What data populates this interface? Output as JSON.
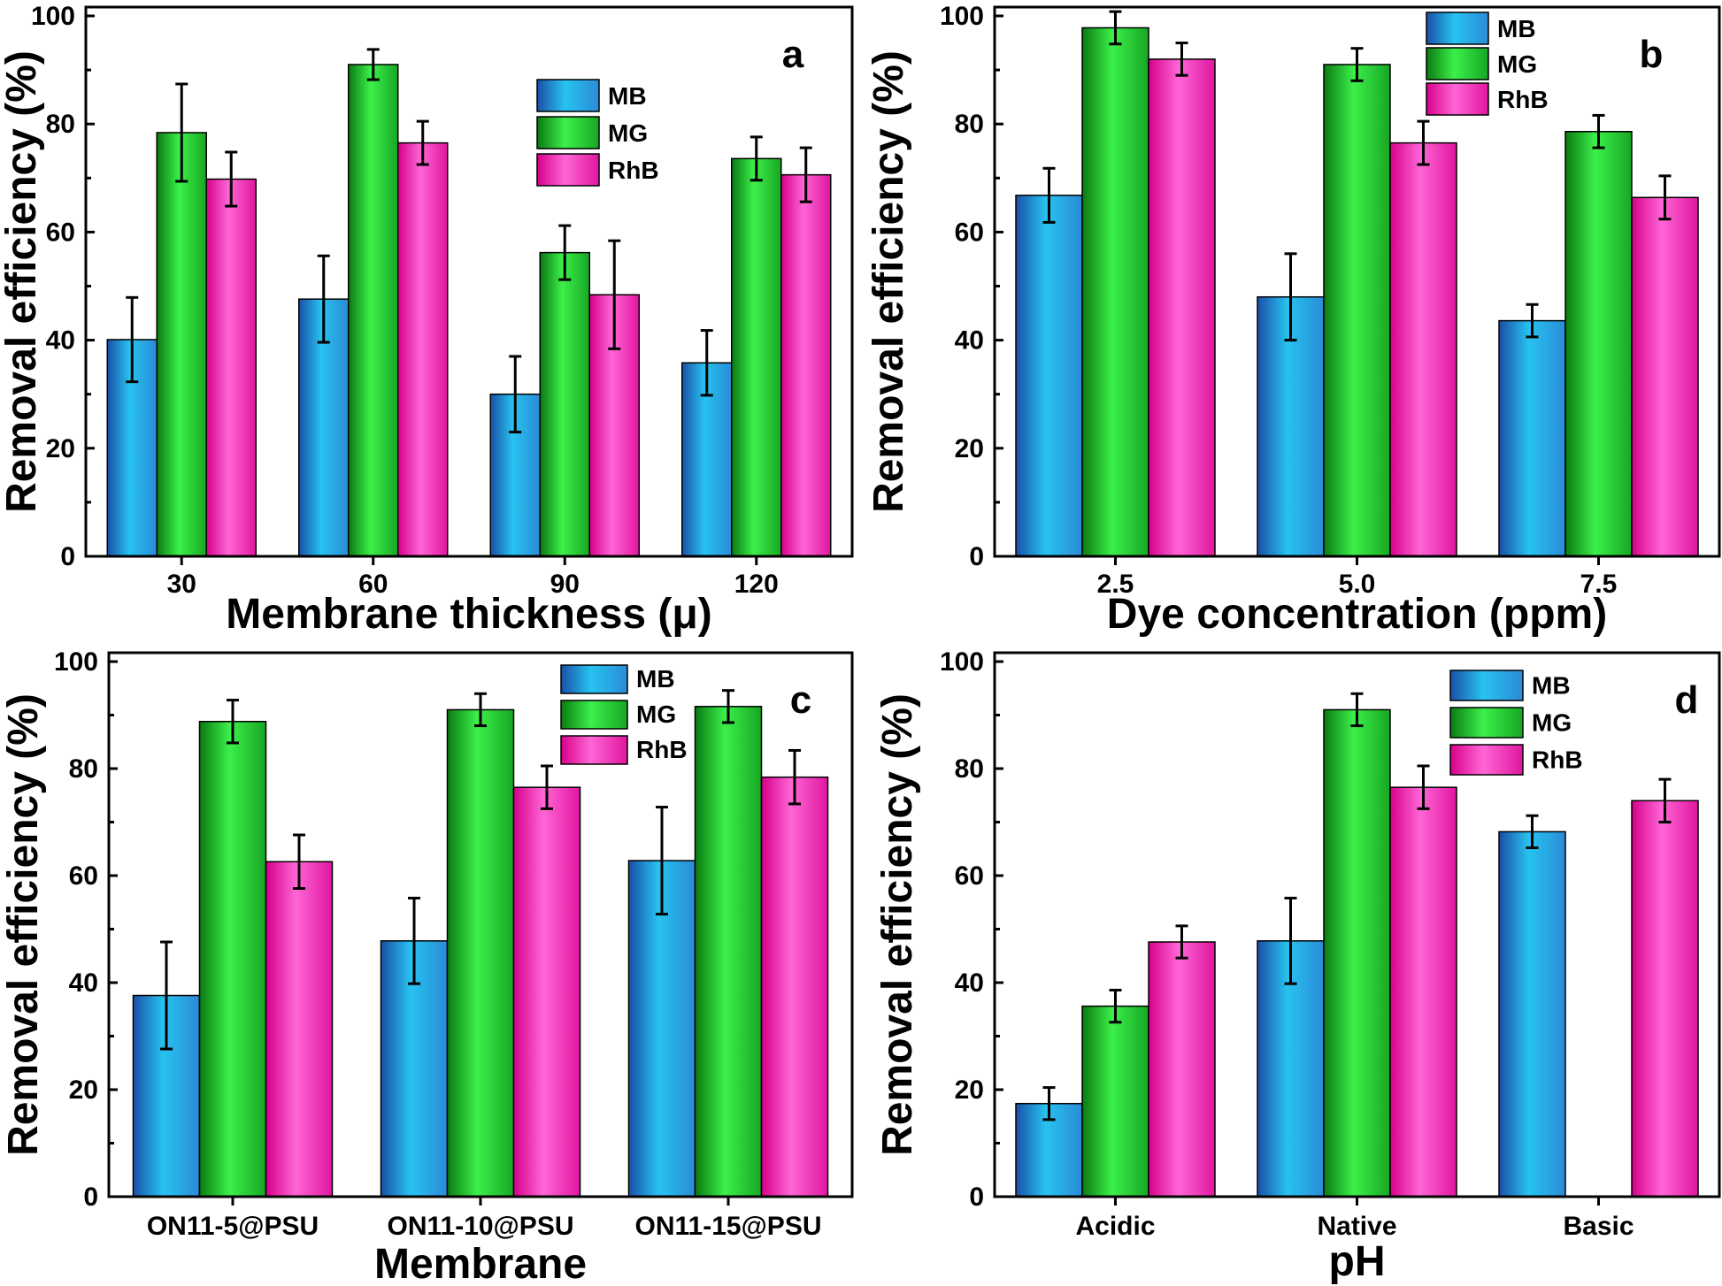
{
  "figure": {
    "legend_items": [
      {
        "name": "MB",
        "gradient": [
          "#1a4fa8",
          "#27c3f0",
          "#2a8bd6"
        ]
      },
      {
        "name": "MG",
        "gradient": [
          "#0a7a12",
          "#3cf04a",
          "#17a624"
        ]
      },
      {
        "name": "RhB",
        "gradient": [
          "#d6008a",
          "#ff66d6",
          "#e0169f"
        ]
      }
    ]
  },
  "chart_data": [
    {
      "type": "bar",
      "panel_label": "a",
      "xlabel": "Membrane thickness (μ)",
      "ylabel": "Removal efficiency (%)",
      "categories": [
        "30",
        "60",
        "90",
        "120"
      ],
      "ylim": [
        0,
        100
      ],
      "yticks": [
        0,
        20,
        40,
        60,
        80,
        100
      ],
      "legend_position": "top-right",
      "series": [
        {
          "name": "MB",
          "values": [
            40.1,
            47.6,
            30.0,
            35.8
          ],
          "errors": [
            7.8,
            8.0,
            7.0,
            6.0
          ]
        },
        {
          "name": "MG",
          "values": [
            78.4,
            91.0,
            56.2,
            73.6
          ],
          "errors": [
            9.0,
            2.8,
            5.0,
            4.0
          ]
        },
        {
          "name": "RhB",
          "values": [
            69.8,
            76.5,
            48.4,
            70.6
          ],
          "errors": [
            5.0,
            4.0,
            10.0,
            5.0
          ]
        }
      ]
    },
    {
      "type": "bar",
      "panel_label": "b",
      "xlabel": "Dye concentration (ppm)",
      "ylabel": "Removal efficiency (%)",
      "categories": [
        "2.5",
        "5.0",
        "7.5"
      ],
      "ylim": [
        0,
        100
      ],
      "yticks": [
        0,
        20,
        40,
        60,
        80,
        100
      ],
      "legend_position": "top-right",
      "series": [
        {
          "name": "MB",
          "values": [
            66.8,
            48.0,
            43.6
          ],
          "errors": [
            5.0,
            8.0,
            3.0
          ]
        },
        {
          "name": "MG",
          "values": [
            97.8,
            91.0,
            78.6
          ],
          "errors": [
            3.0,
            3.0,
            3.0
          ]
        },
        {
          "name": "RhB",
          "values": [
            92.0,
            76.5,
            66.4
          ],
          "errors": [
            3.0,
            4.0,
            4.0
          ]
        }
      ]
    },
    {
      "type": "bar",
      "panel_label": "c",
      "xlabel": "Membrane",
      "ylabel": "Removal efficiency (%)",
      "categories": [
        "ON11-5@PSU",
        "ON11-10@PSU",
        "ON11-15@PSU"
      ],
      "ylim": [
        0,
        100
      ],
      "yticks": [
        0,
        20,
        40,
        60,
        80,
        100
      ],
      "legend_position": "top-right",
      "series": [
        {
          "name": "MB",
          "values": [
            37.6,
            47.8,
            62.8
          ],
          "errors": [
            10.0,
            8.0,
            10.0
          ]
        },
        {
          "name": "MG",
          "values": [
            88.8,
            91.0,
            91.6
          ],
          "errors": [
            4.0,
            3.0,
            3.0
          ]
        },
        {
          "name": "RhB",
          "values": [
            62.6,
            76.5,
            78.4
          ],
          "errors": [
            5.0,
            4.0,
            5.0
          ]
        }
      ]
    },
    {
      "type": "bar",
      "panel_label": "d",
      "xlabel": "pH",
      "ylabel": "Removal efficiency (%)",
      "categories": [
        "Acidic",
        "Native",
        "Basic"
      ],
      "ylim": [
        0,
        100
      ],
      "yticks": [
        0,
        20,
        40,
        60,
        80,
        100
      ],
      "legend_position": "top-right",
      "series": [
        {
          "name": "MB",
          "values": [
            17.4,
            47.8,
            68.2
          ],
          "errors": [
            3.0,
            8.0,
            3.0
          ]
        },
        {
          "name": "MG",
          "values": [
            35.6,
            91.0,
            null
          ],
          "errors": [
            3.0,
            3.0,
            null
          ]
        },
        {
          "name": "RhB",
          "values": [
            47.6,
            76.5,
            74.0
          ],
          "errors": [
            3.0,
            4.0,
            4.0
          ]
        }
      ]
    }
  ]
}
